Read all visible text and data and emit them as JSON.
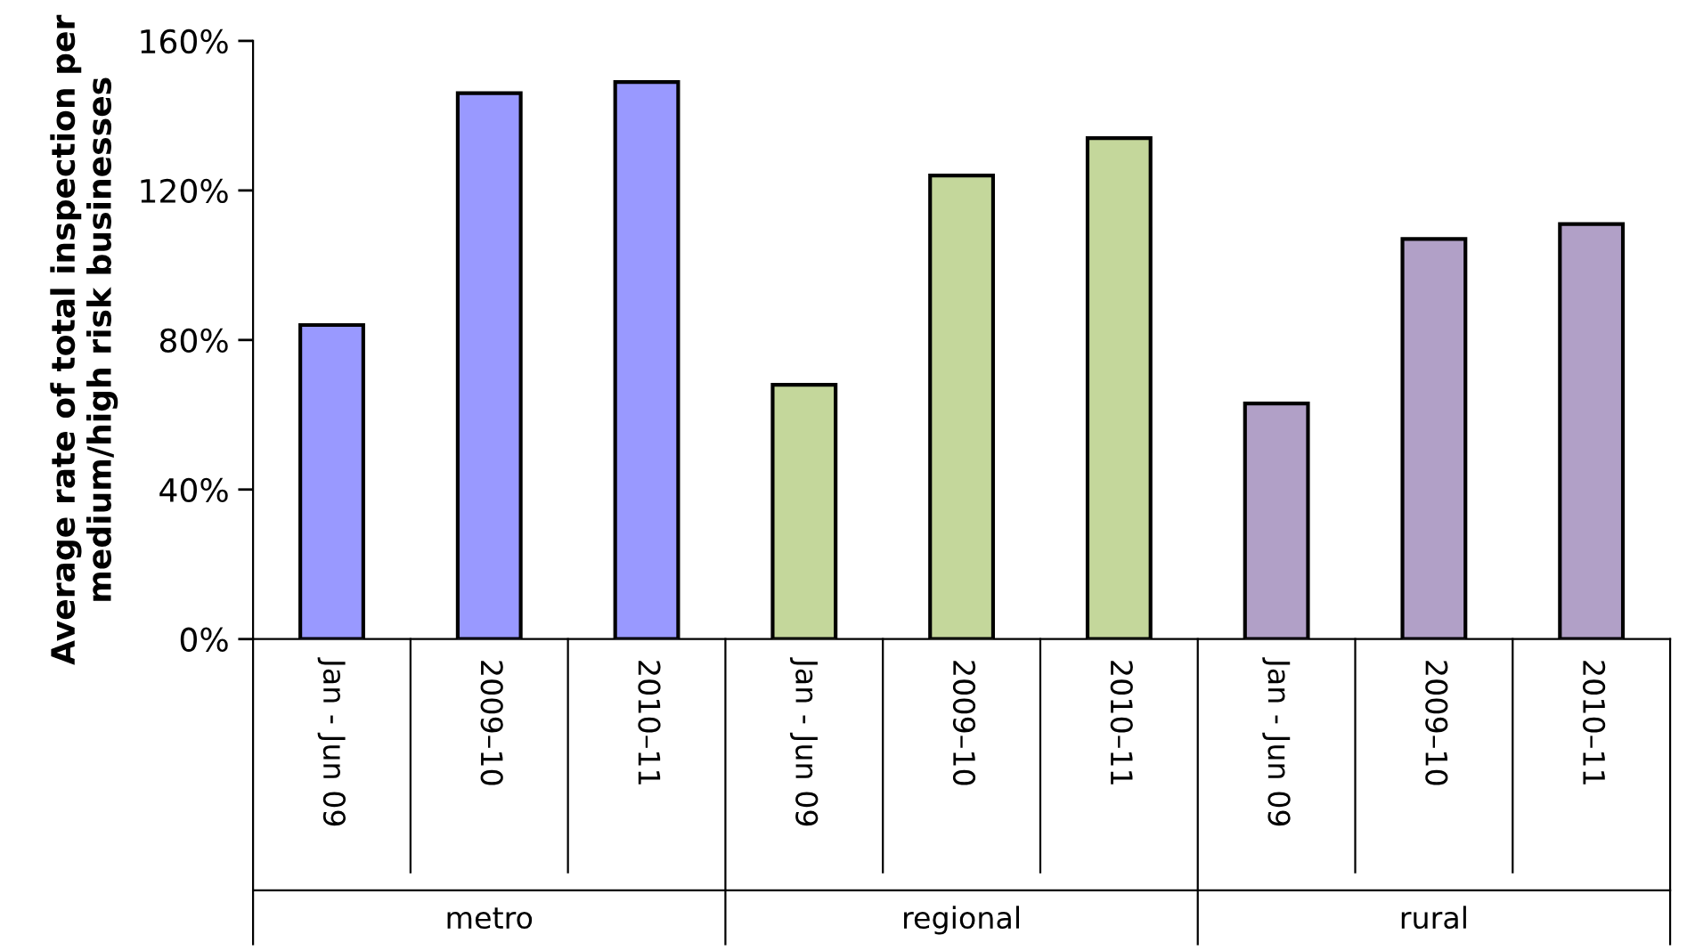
{
  "chart_data": {
    "type": "bar",
    "ylabel": "Average rate of total inspection per\nmedium/high risk businesses",
    "categories": [
      "Jan - Jun 09",
      "2009–10",
      "2010–11",
      "Jan - Jun 09",
      "2009–10",
      "2010–11",
      "Jan - Jun 09",
      "2009–10",
      "2010–11"
    ],
    "values": [
      84,
      146,
      149,
      68,
      124,
      134,
      63,
      107,
      111
    ],
    "colors": [
      "#9999ff",
      "#9999ff",
      "#9999ff",
      "#c4d79b",
      "#c4d79b",
      "#c4d79b",
      "#b1a0c7",
      "#b1a0c7",
      "#b1a0c7"
    ],
    "ylim": [
      0,
      160
    ],
    "yticks": [
      {
        "value": 0,
        "label": "0%"
      },
      {
        "value": 40,
        "label": "40%"
      },
      {
        "value": 80,
        "label": "80%"
      },
      {
        "value": 120,
        "label": "120%"
      },
      {
        "value": 160,
        "label": "160%"
      }
    ],
    "annotations": [
      "metro",
      "regional",
      "rural"
    ],
    "grid": false,
    "legend": false
  }
}
